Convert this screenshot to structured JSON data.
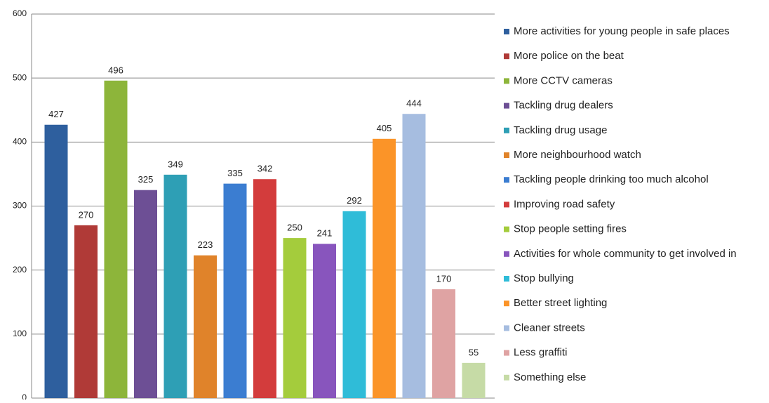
{
  "chart_data": {
    "type": "bar",
    "categories": [
      "More activities for young people in safe places",
      "More police on the beat",
      "More CCTV cameras",
      "Tackling drug dealers",
      "Tackling drug usage",
      "More neighbourhood watch",
      "Tackling people drinking too much alcohol",
      "Improving road safety",
      "Stop people setting fires",
      "Activities for whole community to get involved in",
      "Stop bullying",
      "Better street lighting",
      "Cleaner streets",
      "Less graffiti",
      "Something else"
    ],
    "values": [
      427,
      270,
      496,
      325,
      349,
      223,
      335,
      342,
      250,
      241,
      292,
      405,
      444,
      170,
      55
    ],
    "colors": [
      "#2e5f9e",
      "#b03a37",
      "#8db53a",
      "#6d4f95",
      "#2e9fb5",
      "#e0832a",
      "#3b7dd1",
      "#d33c3c",
      "#a4cc3c",
      "#8855bd",
      "#2fbcd8",
      "#fb9428",
      "#a6bde0",
      "#dfa3a3",
      "#c6dba6"
    ],
    "ylim": [
      0,
      600
    ],
    "yticks": [
      0,
      100,
      200,
      300,
      400,
      500,
      600
    ],
    "grid": true,
    "legend": "right"
  }
}
